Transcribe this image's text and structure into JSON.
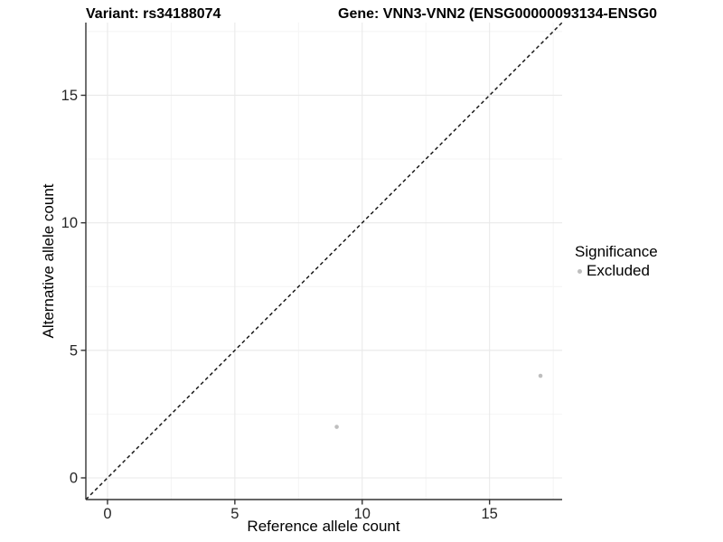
{
  "header": {
    "variant_title": "Variant: rs34188074",
    "gene_title": "Gene: VNN3-VNN2 (ENSG00000093134-ENSG0"
  },
  "legend": {
    "title": "Significance",
    "items": [
      {
        "label": "Excluded",
        "color": "#bebebe",
        "marker": "circle"
      }
    ]
  },
  "colors": {
    "excluded_point": "#bebebe",
    "axis_line": "#333333",
    "tick_label": "#262626",
    "grid_major": "#e9e9e9",
    "grid_minor": "#f4f4f4",
    "identity_line": "#1a1a1a",
    "background": "#ffffff"
  },
  "chart_data": {
    "type": "scatter",
    "title": "Variant: rs34188074 | Gene: VNN3-VNN2 (ENSG00000093134-ENSG0",
    "xlabel": "Reference allele count",
    "ylabel": "Alternative allele count",
    "xlim": [
      -0.85,
      17.85
    ],
    "ylim": [
      -0.85,
      17.85
    ],
    "x_major_ticks": [
      0,
      5,
      10,
      15
    ],
    "y_major_ticks": [
      0,
      5,
      10,
      15
    ],
    "x_minor_ticks": [
      2.5,
      7.5,
      12.5,
      17.5
    ],
    "y_minor_ticks": [
      2.5,
      7.5,
      12.5,
      17.5
    ],
    "grid": "major+minor",
    "legend_position": "right",
    "identity_line": {
      "style": "dashed",
      "equation": "y = x"
    },
    "series": [
      {
        "name": "Excluded",
        "color": "#bebebe",
        "points": [
          {
            "x": 9,
            "y": 2
          },
          {
            "x": 17,
            "y": 4
          }
        ]
      }
    ]
  }
}
